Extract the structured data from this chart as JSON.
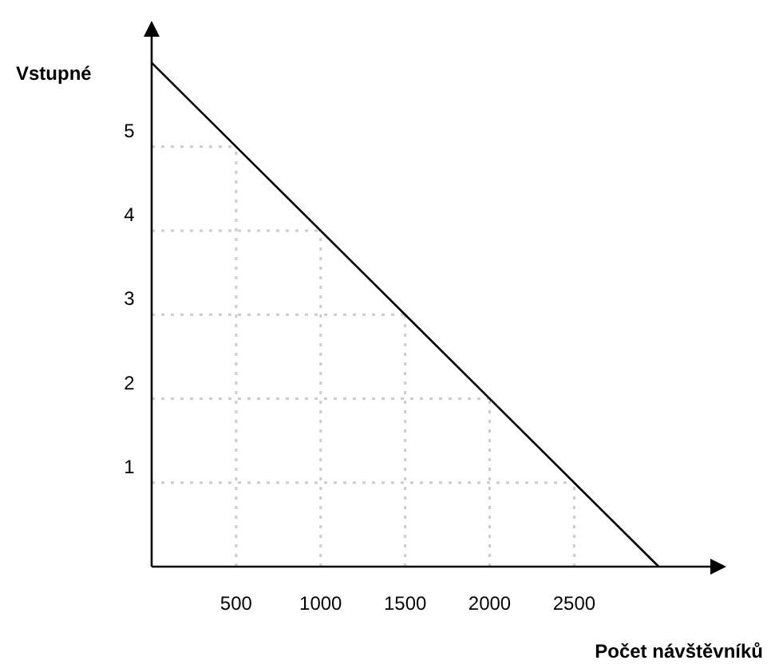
{
  "chart_data": {
    "type": "line",
    "xlabel": "Počet návštěvníků",
    "ylabel": "Vstupné",
    "x": [
      0,
      3000
    ],
    "series": [
      {
        "color": "#000000",
        "values": [
          6,
          0
        ]
      }
    ],
    "xlim": [
      0,
      3400
    ],
    "ylim": [
      0,
      6.5
    ],
    "xticks": [
      500,
      1000,
      1500,
      2000,
      2500
    ],
    "yticks": [
      1,
      2,
      3,
      4,
      5
    ],
    "grid": true,
    "marker": "none",
    "line_style": "solid"
  }
}
